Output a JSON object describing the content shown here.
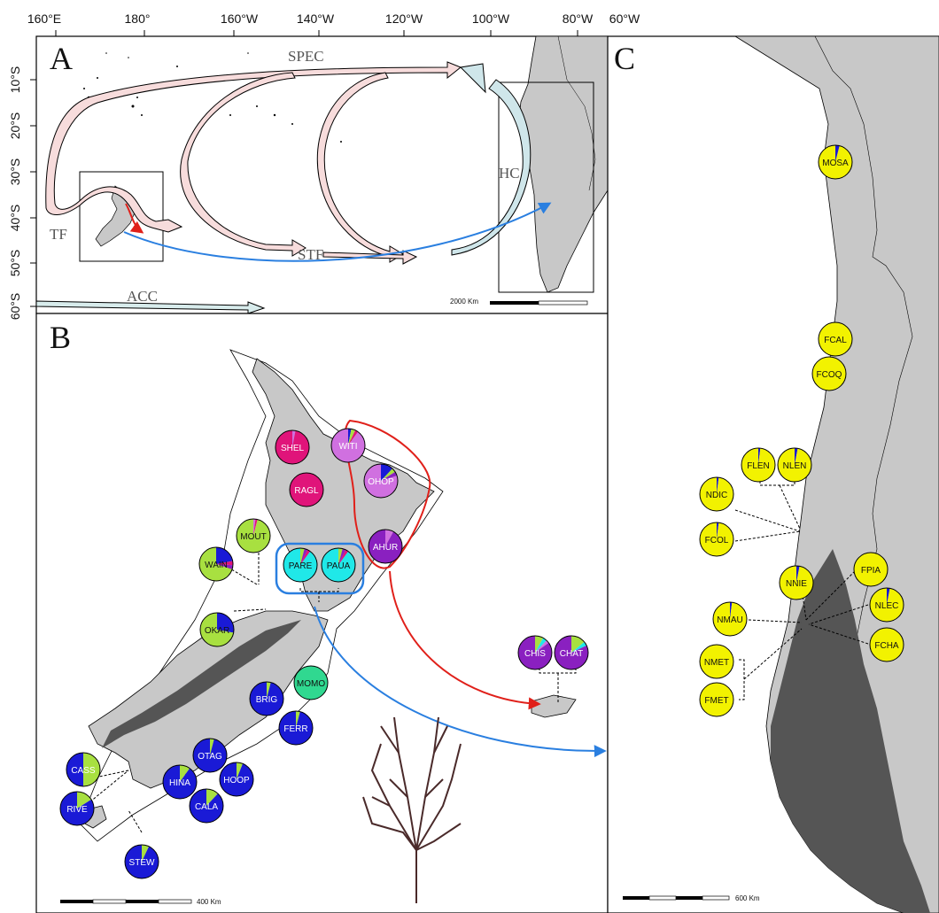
{
  "colors": {
    "land": "#c8c8c8",
    "mountain": "#555555",
    "ocean": "#ffffff",
    "outline": "#000000",
    "current_fill": "#f7dcdc",
    "hc_fill": "#cfe6ea",
    "acc_fill": "#d8ecec",
    "arrow_red": "#e0201a",
    "arrow_blue": "#2a7fe0",
    "circle_blue": "#2a7fe0",
    "genetic_clusters": {
      "yellow": "#f2f200",
      "blue": "#1a1ad6",
      "magenta": "#e0147a",
      "violet": "#d070e0",
      "purple": "#8a20c0",
      "green": "#a8e040",
      "cyan": "#20e8e8",
      "teal": "#30d890"
    }
  },
  "axes": {
    "longitude_labels": [
      "160°E",
      "180°",
      "160°W",
      "140°W",
      "120°W",
      "100°W",
      "80°W",
      "60°W"
    ],
    "latitude_labels": [
      "10°S",
      "20°S",
      "30°S",
      "40°S",
      "50°S",
      "60°S"
    ]
  },
  "panels": {
    "a": {
      "letter": "A"
    },
    "b": {
      "letter": "B"
    },
    "c": {
      "letter": "C"
    }
  },
  "currents": {
    "spec": "SPEC",
    "tf": "TF",
    "stf": "STF",
    "hc": "HC",
    "acc": "ACC"
  },
  "scale_bars": {
    "a": "2000 Km",
    "b": "400 Km",
    "c": "600 Km"
  },
  "populations_nz": [
    {
      "code": "SHEL",
      "main": "magenta",
      "mix": [
        [
          "magenta",
          0.97
        ],
        [
          "violet",
          0.03
        ]
      ]
    },
    {
      "code": "WITI",
      "main": "violet",
      "mix": [
        [
          "violet",
          0.9
        ],
        [
          "blue",
          0.03
        ],
        [
          "green",
          0.04
        ],
        [
          "magenta",
          0.03
        ]
      ]
    },
    {
      "code": "RAGL",
      "main": "magenta",
      "mix": [
        [
          "magenta",
          1.0
        ]
      ]
    },
    {
      "code": "OHOP",
      "main": "violet",
      "mix": [
        [
          "violet",
          0.8
        ],
        [
          "blue",
          0.12
        ],
        [
          "green",
          0.04
        ],
        [
          "purple",
          0.04
        ]
      ]
    },
    {
      "code": "MOUT",
      "main": "green",
      "mix": [
        [
          "green",
          0.96
        ],
        [
          "violet",
          0.02
        ],
        [
          "magenta",
          0.02
        ]
      ]
    },
    {
      "code": "WAIN",
      "main": "green",
      "mix": [
        [
          "green",
          0.7
        ],
        [
          "blue",
          0.22
        ],
        [
          "magenta",
          0.04
        ],
        [
          "purple",
          0.04
        ]
      ]
    },
    {
      "code": "PARE",
      "main": "cyan",
      "mix": [
        [
          "cyan",
          0.9
        ],
        [
          "green",
          0.04
        ],
        [
          "purple",
          0.03
        ],
        [
          "magenta",
          0.03
        ]
      ]
    },
    {
      "code": "PAUA",
      "main": "cyan",
      "mix": [
        [
          "cyan",
          0.9
        ],
        [
          "green",
          0.04
        ],
        [
          "purple",
          0.03
        ],
        [
          "magenta",
          0.03
        ]
      ]
    },
    {
      "code": "AHUR",
      "main": "purple",
      "mix": [
        [
          "purple",
          0.92
        ],
        [
          "violet",
          0.08
        ]
      ]
    },
    {
      "code": "OKAR",
      "main": "green",
      "mix": [
        [
          "green",
          0.72
        ],
        [
          "blue",
          0.28
        ]
      ]
    },
    {
      "code": "MOMO",
      "main": "teal",
      "mix": [
        [
          "teal",
          1.0
        ]
      ]
    },
    {
      "code": "CHIS",
      "main": "purple",
      "mix": [
        [
          "purple",
          0.85
        ],
        [
          "green",
          0.08
        ],
        [
          "cyan",
          0.04
        ],
        [
          "violet",
          0.03
        ]
      ]
    },
    {
      "code": "CHAT",
      "main": "purple",
      "mix": [
        [
          "purple",
          0.82
        ],
        [
          "green",
          0.14
        ],
        [
          "cyan",
          0.04
        ]
      ]
    },
    {
      "code": "BRIG",
      "main": "blue",
      "mix": [
        [
          "blue",
          0.96
        ],
        [
          "green",
          0.04
        ]
      ]
    },
    {
      "code": "FERR",
      "main": "blue",
      "mix": [
        [
          "blue",
          0.96
        ],
        [
          "green",
          0.04
        ]
      ]
    },
    {
      "code": "CASS",
      "main": "blue",
      "mix": [
        [
          "blue",
          0.5
        ],
        [
          "green",
          0.5
        ]
      ]
    },
    {
      "code": "OTAG",
      "main": "blue",
      "mix": [
        [
          "blue",
          0.96
        ],
        [
          "green",
          0.04
        ]
      ]
    },
    {
      "code": "HOOP",
      "main": "blue",
      "mix": [
        [
          "blue",
          0.94
        ],
        [
          "green",
          0.06
        ]
      ]
    },
    {
      "code": "HINA",
      "main": "blue",
      "mix": [
        [
          "blue",
          0.9
        ],
        [
          "green",
          0.1
        ]
      ]
    },
    {
      "code": "CALA",
      "main": "blue",
      "mix": [
        [
          "blue",
          0.88
        ],
        [
          "green",
          0.12
        ]
      ]
    },
    {
      "code": "RIVE",
      "main": "blue",
      "mix": [
        [
          "blue",
          0.84
        ],
        [
          "green",
          0.16
        ]
      ]
    },
    {
      "code": "STEW",
      "main": "blue",
      "mix": [
        [
          "blue",
          0.93
        ],
        [
          "green",
          0.07
        ]
      ]
    }
  ],
  "populations_chile": [
    {
      "code": "MOSA",
      "mix": [
        [
          "yellow",
          0.96
        ],
        [
          "blue",
          0.04
        ]
      ]
    },
    {
      "code": "FCAL",
      "mix": [
        [
          "yellow",
          1.0
        ]
      ]
    },
    {
      "code": "FCOQ",
      "mix": [
        [
          "yellow",
          1.0
        ]
      ]
    },
    {
      "code": "FLEN",
      "mix": [
        [
          "yellow",
          0.98
        ],
        [
          "blue",
          0.02
        ]
      ]
    },
    {
      "code": "NLEN",
      "mix": [
        [
          "yellow",
          0.97
        ],
        [
          "blue",
          0.03
        ]
      ]
    },
    {
      "code": "NDIC",
      "mix": [
        [
          "yellow",
          0.98
        ],
        [
          "blue",
          0.02
        ]
      ]
    },
    {
      "code": "FCOL",
      "mix": [
        [
          "yellow",
          0.98
        ],
        [
          "blue",
          0.02
        ]
      ]
    },
    {
      "code": "FPIA",
      "mix": [
        [
          "yellow",
          1.0
        ]
      ]
    },
    {
      "code": "NNIE",
      "mix": [
        [
          "yellow",
          0.97
        ],
        [
          "blue",
          0.03
        ]
      ]
    },
    {
      "code": "NLEC",
      "mix": [
        [
          "yellow",
          0.97
        ],
        [
          "blue",
          0.03
        ]
      ]
    },
    {
      "code": "NMAU",
      "mix": [
        [
          "yellow",
          0.98
        ],
        [
          "blue",
          0.02
        ]
      ]
    },
    {
      "code": "FCHA",
      "mix": [
        [
          "yellow",
          1.0
        ]
      ]
    },
    {
      "code": "NMET",
      "mix": [
        [
          "yellow",
          1.0
        ]
      ]
    },
    {
      "code": "FMET",
      "mix": [
        [
          "yellow",
          1.0
        ]
      ]
    }
  ]
}
